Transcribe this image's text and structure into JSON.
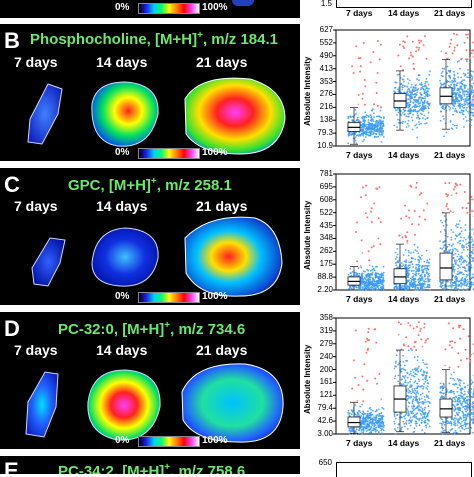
{
  "top_strip": {
    "scale_min": "0%",
    "scale_max": "100%",
    "tick_bottom": "1.5",
    "x_labels": [
      "7 days",
      "14 days",
      "21 days"
    ]
  },
  "panels": [
    {
      "letter": "B",
      "title_main": "Phosphocholine, [M+H]",
      "title_sup": "+",
      "title_mz": ", m/z 184.1",
      "days": [
        "7 days",
        "14 days",
        "21 days"
      ],
      "scale_min": "0%",
      "scale_max": "100%",
      "y_label": "Absolute Intensity",
      "y_ticks": [
        "627",
        "552",
        "490",
        "413",
        "353",
        "276",
        "216",
        "138",
        "79.3",
        "10.9"
      ],
      "x_labels": [
        "7 days",
        "14 days",
        "21 days"
      ]
    },
    {
      "letter": "C",
      "title_main": "GPC, [M+H]",
      "title_sup": "+",
      "title_mz": ", m/z 258.1",
      "days": [
        "7 days",
        "14 days",
        "21 days"
      ],
      "scale_min": "0%",
      "scale_max": "100%",
      "y_label": "Absolute Intensity",
      "y_ticks": [
        "781",
        "695",
        "608",
        "522",
        "435",
        "348",
        "262",
        "175",
        "88.8",
        "2.20"
      ],
      "x_labels": [
        "7 days",
        "14 days",
        "21 days"
      ]
    },
    {
      "letter": "D",
      "title_main": "PC-32:0, [M+H]",
      "title_sup": "+",
      "title_mz": ", m/z 734.6",
      "days": [
        "7 days",
        "14 days",
        "21 days"
      ],
      "scale_min": "0%",
      "scale_max": "100%",
      "y_label": "Absolute Intensity",
      "y_ticks": [
        "358",
        "319",
        "279",
        "240",
        "200",
        "161",
        "121",
        "79.4",
        "42.6",
        "3.00"
      ],
      "x_labels": [
        "7 days",
        "14 days",
        "21 days"
      ]
    },
    {
      "letter": "E",
      "title_main": "PC-34:2, [M+H]",
      "title_sup": "+",
      "title_mz": ", m/z 758.6",
      "y_ticks": [
        "650"
      ]
    }
  ],
  "chart_data": [
    {
      "type": "scatter",
      "panel": "B",
      "ylabel": "Absolute Intensity",
      "categories": [
        "7 days",
        "14 days",
        "21 days"
      ],
      "ylim": [
        10.9,
        627
      ],
      "box": [
        {
          "q1": 88,
          "median": 110,
          "q3": 135,
          "whisker_low": 20,
          "whisker_high": 215
        },
        {
          "q1": 215,
          "median": 250,
          "q3": 290,
          "whisker_low": 95,
          "whisker_high": 410
        },
        {
          "q1": 235,
          "median": 275,
          "q3": 320,
          "whisker_low": 100,
          "whisker_high": 470
        }
      ]
    },
    {
      "type": "scatter",
      "panel": "C",
      "ylabel": "Absolute Intensity",
      "categories": [
        "7 days",
        "14 days",
        "21 days"
      ],
      "ylim": [
        2.2,
        781
      ],
      "box": [
        {
          "q1": 35,
          "median": 60,
          "q3": 90,
          "whisker_low": 3,
          "whisker_high": 160
        },
        {
          "q1": 45,
          "median": 90,
          "q3": 145,
          "whisker_low": 3,
          "whisker_high": 310
        },
        {
          "q1": 70,
          "median": 150,
          "q3": 250,
          "whisker_low": 3,
          "whisker_high": 520
        }
      ]
    },
    {
      "type": "scatter",
      "panel": "D",
      "ylabel": "Absolute Intensity",
      "categories": [
        "7 days",
        "14 days",
        "21 days"
      ],
      "ylim": [
        3.0,
        358
      ],
      "box": [
        {
          "q1": 25,
          "median": 38,
          "q3": 55,
          "whisker_low": 5,
          "whisker_high": 100
        },
        {
          "q1": 70,
          "median": 110,
          "q3": 150,
          "whisker_low": 10,
          "whisker_high": 260
        },
        {
          "q1": 55,
          "median": 80,
          "q3": 110,
          "whisker_low": 8,
          "whisker_high": 200
        }
      ]
    }
  ]
}
